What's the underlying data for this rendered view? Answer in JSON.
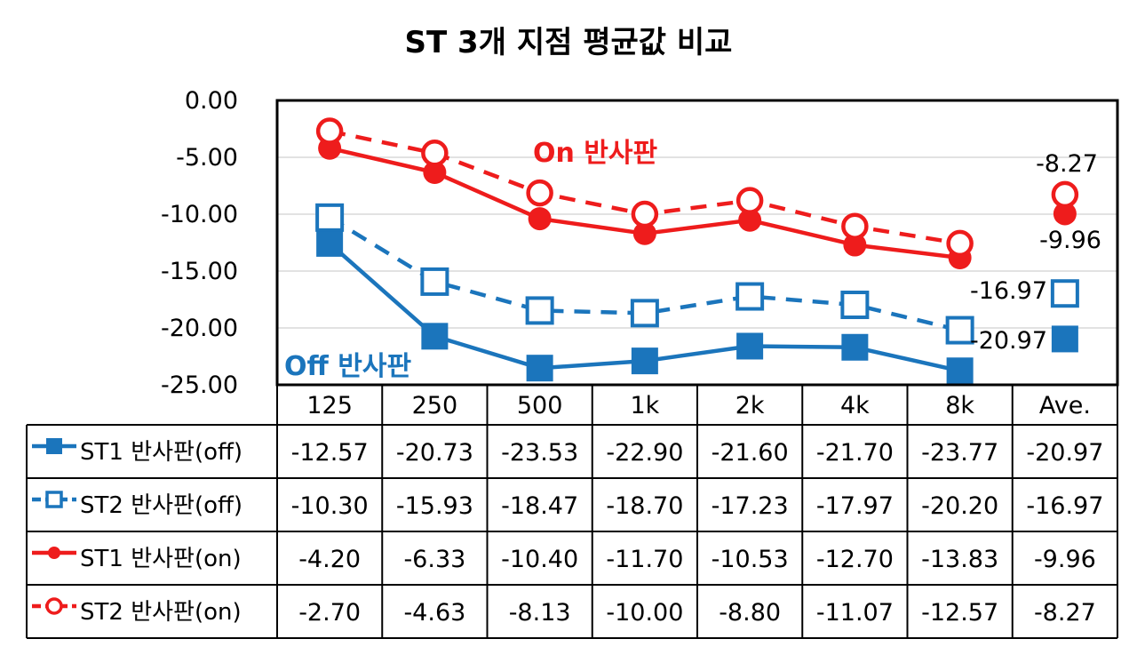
{
  "chart_data": {
    "type": "line",
    "title": "ST 3개 지점 평균값 비교",
    "categories": [
      "125",
      "250",
      "500",
      "1k",
      "2k",
      "4k",
      "8k",
      "Ave."
    ],
    "ylim": [
      -25,
      0
    ],
    "yticks": [
      "0.00",
      "-5.00",
      "-10.00",
      "-15.00",
      "-20.00",
      "-25.00"
    ],
    "grid": true,
    "legend": "data table rows",
    "series": [
      {
        "name": "ST1 반사판(off)",
        "color": "#1b75bc",
        "marker": "square-filled",
        "dash": false,
        "values": [
          -12.57,
          -20.73,
          -23.53,
          -22.9,
          -21.6,
          -21.7,
          -23.77,
          -20.97
        ],
        "labels": [
          "-12.57",
          "-20.73",
          "-23.53",
          "-22.90",
          "-21.60",
          "-21.70",
          "-23.77",
          "-20.97"
        ]
      },
      {
        "name": "ST2 반사판(off)",
        "color": "#1b75bc",
        "marker": "square-open",
        "dash": true,
        "values": [
          -10.3,
          -15.93,
          -18.47,
          -18.7,
          -17.23,
          -17.97,
          -20.2,
          -16.97
        ],
        "labels": [
          "-10.30",
          "-15.93",
          "-18.47",
          "-18.70",
          "-17.23",
          "-17.97",
          "-20.20",
          "-16.97"
        ]
      },
      {
        "name": "ST1 반사판(on)",
        "color": "#ee1c1c",
        "marker": "circle-filled",
        "dash": false,
        "values": [
          -4.2,
          -6.33,
          -10.4,
          -11.7,
          -10.53,
          -12.7,
          -13.83,
          -9.96
        ],
        "labels": [
          "-4.20",
          "-6.33",
          "-10.40",
          "-11.70",
          "-10.53",
          "-12.70",
          "-13.83",
          "-9.96"
        ]
      },
      {
        "name": "ST2 반사판(on)",
        "color": "#ee1c1c",
        "marker": "circle-open",
        "dash": true,
        "values": [
          -2.7,
          -4.63,
          -8.13,
          -10.0,
          -8.8,
          -11.07,
          -12.57,
          -8.27
        ],
        "labels": [
          "-2.70",
          "-4.63",
          "-8.13",
          "-10.00",
          "-8.80",
          "-11.07",
          "-12.57",
          "-8.27"
        ]
      }
    ],
    "annotations": [
      {
        "text": "On 반사판",
        "color": "#ee1c1c"
      },
      {
        "text": "Off 반사판",
        "color": "#1b75bc"
      }
    ],
    "average_labels": [
      "-8.27",
      "-9.96",
      "-16.97",
      "-20.97"
    ]
  }
}
